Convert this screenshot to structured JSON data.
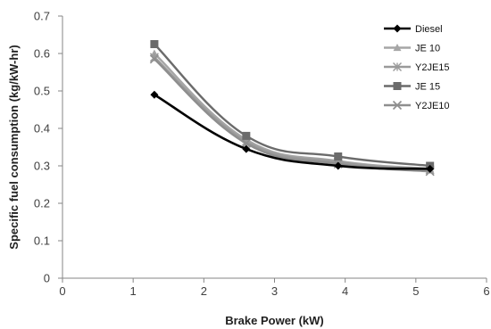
{
  "chart_data": {
    "type": "line",
    "title": "",
    "xlabel": "Brake Power (kW)",
    "ylabel": "Specific fuel consumption (kg/kW-hr)",
    "xlim": [
      0,
      6
    ],
    "ylim": [
      0,
      0.7
    ],
    "x_ticks": [
      "0",
      "1",
      "2",
      "3",
      "4",
      "5",
      "6"
    ],
    "y_ticks": [
      "0",
      "0.1",
      "0.2",
      "0.3",
      "0.4",
      "0.5",
      "0.6",
      "0.7"
    ],
    "grid": false,
    "legend_position": "top-right",
    "x": [
      1.3,
      2.6,
      3.9,
      5.2
    ],
    "series": [
      {
        "name": "Diesel",
        "values": [
          0.49,
          0.345,
          0.3,
          0.292
        ],
        "color": "#000000",
        "marker": "diamond"
      },
      {
        "name": "JE 10",
        "values": [
          0.6,
          0.37,
          0.313,
          0.292
        ],
        "color": "#a6a6a6",
        "marker": "triangle"
      },
      {
        "name": "Y2JE15",
        "values": [
          0.59,
          0.365,
          0.31,
          0.29
        ],
        "color": "#9a9a9a",
        "marker": "star"
      },
      {
        "name": "JE 15",
        "values": [
          0.625,
          0.38,
          0.325,
          0.3
        ],
        "color": "#6b6b6b",
        "marker": "square"
      },
      {
        "name": "Y2JE10",
        "values": [
          0.585,
          0.36,
          0.305,
          0.285
        ],
        "color": "#8e8e8e",
        "marker": "x"
      }
    ]
  }
}
